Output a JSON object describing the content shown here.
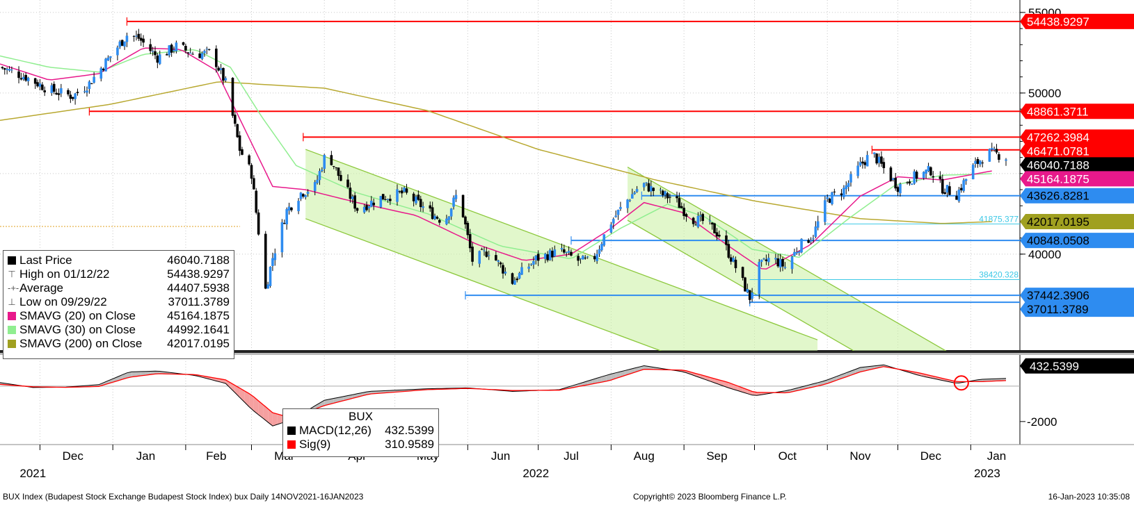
{
  "footer": {
    "left": "BUX Index (Budapest Stock Exchange Budapest Stock Index) bux  Daily 14NOV2021-16JAN2023",
    "center": "Copyright© 2023 Bloomberg Finance L.P.",
    "right": "16-Jan-2023 10:35:08"
  },
  "legend": {
    "items": [
      {
        "label": "Last Price",
        "value": "46040.7188",
        "marker": "square",
        "color": "#000000"
      },
      {
        "label": "High on 01/12/22",
        "value": "54438.9297",
        "marker": "high",
        "color": "#555555"
      },
      {
        "label": "Average",
        "value": "44407.5938",
        "marker": "avg",
        "color": "#555555"
      },
      {
        "label": "Low on 09/29/22",
        "value": "37011.3789",
        "marker": "low",
        "color": "#555555"
      },
      {
        "label": "SMAVG (20)  on Close",
        "value": "45164.1875",
        "marker": "square",
        "color": "#e8198b"
      },
      {
        "label": "SMAVG (30)  on Close",
        "value": "44992.1641",
        "marker": "square",
        "color": "#90ee90"
      },
      {
        "label": "SMAVG (200)  on Close",
        "value": "42017.0195",
        "marker": "square",
        "color": "#a0a020"
      }
    ]
  },
  "macd_legend": {
    "title": "BUX",
    "items": [
      {
        "label": "MACD(12,26)",
        "value": "432.5399",
        "color": "#000000"
      },
      {
        "label": "Sig(9)",
        "value": "310.9589",
        "color": "#ff0000"
      }
    ]
  },
  "chart_data": {
    "type": "candlestick",
    "x_range": [
      "2021-11-14",
      "2023-01-16"
    ],
    "x_month_labels": [
      "Dec",
      "Jan",
      "Feb",
      "Mar",
      "Apr",
      "May",
      "Jun",
      "Jul",
      "Aug",
      "Sep",
      "Oct",
      "Nov",
      "Dec",
      "Jan"
    ],
    "x_year_labels": [
      "2021",
      "2022",
      "2023"
    ],
    "y_ticks": [
      "55000",
      "50000",
      "40000"
    ],
    "ylim": [
      34000,
      55600
    ],
    "horizontal_levels": [
      {
        "label": "54438.9297",
        "value": 54438.9297,
        "color": "#ff0000"
      },
      {
        "label": "48861.3711",
        "value": 48861.3711,
        "color": "#ff0000"
      },
      {
        "label": "47262.3984",
        "value": 47262.3984,
        "color": "#ff0000"
      },
      {
        "label": "46471.0781",
        "value": 46471.0781,
        "color": "#ff0000"
      },
      {
        "label": "43626.8281",
        "value": 43626.8281,
        "color": "#2e8cf0"
      },
      {
        "label": "40848.0508",
        "value": 40848.0508,
        "color": "#2e8cf0"
      },
      {
        "label": "37442.3906",
        "value": 37442.3906,
        "color": "#2e8cf0"
      },
      {
        "label": "37011.3789",
        "value": 37011.3789,
        "color": "#2e8cf0"
      }
    ],
    "right_tags": [
      {
        "label": "54438.9297",
        "value": 54438.9297,
        "bg": "#ff0000",
        "fg": "#ffffff"
      },
      {
        "label": "48861.3711",
        "value": 48861.3711,
        "bg": "#ff0000",
        "fg": "#ffffff"
      },
      {
        "label": "47262.3984",
        "value": 47262.3984,
        "bg": "#ff0000",
        "fg": "#ffffff"
      },
      {
        "label": "46471.0781",
        "value": 46471.0781,
        "bg": "#ff0000",
        "fg": "#ffffff"
      },
      {
        "label": "46040.7188",
        "value": 46040.7188,
        "bg": "#000000",
        "fg": "#ffffff"
      },
      {
        "label": "45164.1875",
        "value": 45164.1875,
        "bg": "#e8198b",
        "fg": "#ffffff"
      },
      {
        "label": "43626.8281",
        "value": 43626.8281,
        "bg": "#2e8cf0",
        "fg": "#000000"
      },
      {
        "label": "42017.0195",
        "value": 42017.0195,
        "bg": "#a0a020",
        "fg": "#000000"
      },
      {
        "label": "40848.0508",
        "value": 40848.0508,
        "bg": "#2e8cf0",
        "fg": "#000000"
      },
      {
        "label": "37442.3906",
        "value": 37442.3906,
        "bg": "#2e8cf0",
        "fg": "#000000"
      },
      {
        "label": "37011.3789",
        "value": 37011.3789,
        "bg": "#2e8cf0",
        "fg": "#000000"
      }
    ],
    "fib_labels": [
      {
        "label": "41875.377",
        "value": 41875.377
      },
      {
        "label": "38420.328",
        "value": 38420.328
      }
    ],
    "sma20_anchor": [
      [
        "2021-11-14",
        51800
      ],
      [
        "2021-12-05",
        50800
      ],
      [
        "2021-12-26",
        51200
      ],
      [
        "2022-01-14",
        52800
      ],
      [
        "2022-01-30",
        52700
      ],
      [
        "2022-02-14",
        51400
      ],
      [
        "2022-02-28",
        47200
      ],
      [
        "2022-03-10",
        44200
      ],
      [
        "2022-03-24",
        44000
      ],
      [
        "2022-04-15",
        43200
      ],
      [
        "2022-05-10",
        42400
      ],
      [
        "2022-06-05",
        40600
      ],
      [
        "2022-06-25",
        39600
      ],
      [
        "2022-07-15",
        40000
      ],
      [
        "2022-07-31",
        41500
      ],
      [
        "2022-08-15",
        43200
      ],
      [
        "2022-08-31",
        42600
      ],
      [
        "2022-09-20",
        40500
      ],
      [
        "2022-10-05",
        39000
      ],
      [
        "2022-10-25",
        40600
      ],
      [
        "2022-11-15",
        43600
      ],
      [
        "2022-12-01",
        44800
      ],
      [
        "2022-12-20",
        44600
      ],
      [
        "2023-01-10",
        45164
      ]
    ],
    "sma30_anchor": [
      [
        "2021-11-14",
        52300
      ],
      [
        "2021-12-05",
        51600
      ],
      [
        "2021-12-26",
        51300
      ],
      [
        "2022-01-14",
        52400
      ],
      [
        "2022-02-05",
        52700
      ],
      [
        "2022-02-20",
        51600
      ],
      [
        "2022-03-05",
        48600
      ],
      [
        "2022-03-20",
        45500
      ],
      [
        "2022-04-15",
        43800
      ],
      [
        "2022-05-15",
        42500
      ],
      [
        "2022-06-15",
        40500
      ],
      [
        "2022-07-15",
        39700
      ],
      [
        "2022-08-05",
        41600
      ],
      [
        "2022-08-25",
        43100
      ],
      [
        "2022-09-10",
        42300
      ],
      [
        "2022-09-30",
        40300
      ],
      [
        "2022-10-20",
        39800
      ],
      [
        "2022-11-10",
        42200
      ],
      [
        "2022-11-30",
        44300
      ],
      [
        "2022-12-20",
        44900
      ],
      [
        "2023-01-10",
        44992
      ]
    ],
    "sma200_anchor": [
      [
        "2021-11-14",
        48300
      ],
      [
        "2021-12-31",
        49300
      ],
      [
        "2022-02-15",
        50700
      ],
      [
        "2022-04-01",
        50300
      ],
      [
        "2022-05-15",
        48900
      ],
      [
        "2022-07-01",
        46500
      ],
      [
        "2022-08-20",
        44600
      ],
      [
        "2022-10-01",
        43300
      ],
      [
        "2022-11-15",
        42200
      ],
      [
        "2022-12-20",
        41900
      ],
      [
        "2023-01-10",
        42017
      ]
    ],
    "price_anchor": [
      [
        "2021-11-14",
        51600
      ],
      [
        "2021-11-25",
        51000
      ],
      [
        "2021-12-05",
        50200
      ],
      [
        "2021-12-15",
        49800
      ],
      [
        "2021-12-22",
        50600
      ],
      [
        "2021-12-31",
        52300
      ],
      [
        "2022-01-07",
        53600
      ],
      [
        "2022-01-12",
        53400
      ],
      [
        "2022-01-20",
        52200
      ],
      [
        "2022-01-28",
        52900
      ],
      [
        "2022-02-05",
        52400
      ],
      [
        "2022-02-12",
        52500
      ],
      [
        "2022-02-18",
        50600
      ],
      [
        "2022-02-24",
        46500
      ],
      [
        "2022-03-01",
        45000
      ],
      [
        "2022-03-07",
        37800
      ],
      [
        "2022-03-10",
        39800
      ],
      [
        "2022-03-16",
        42700
      ],
      [
        "2022-03-22",
        43800
      ],
      [
        "2022-03-28",
        44200
      ],
      [
        "2022-04-02",
        46400
      ],
      [
        "2022-04-08",
        44600
      ],
      [
        "2022-04-15",
        42800
      ],
      [
        "2022-04-25",
        43500
      ],
      [
        "2022-05-05",
        43800
      ],
      [
        "2022-05-15",
        42700
      ],
      [
        "2022-05-22",
        42000
      ],
      [
        "2022-05-28",
        43900
      ],
      [
        "2022-06-03",
        39600
      ],
      [
        "2022-06-10",
        40200
      ],
      [
        "2022-06-20",
        38300
      ],
      [
        "2022-06-30",
        39700
      ],
      [
        "2022-07-10",
        40200
      ],
      [
        "2022-07-18",
        39600
      ],
      [
        "2022-07-24",
        39500
      ],
      [
        "2022-07-31",
        41800
      ],
      [
        "2022-08-07",
        43200
      ],
      [
        "2022-08-14",
        44400
      ],
      [
        "2022-08-21",
        43800
      ],
      [
        "2022-08-28",
        43400
      ],
      [
        "2022-09-04",
        42200
      ],
      [
        "2022-09-10",
        42000
      ],
      [
        "2022-09-16",
        41200
      ],
      [
        "2022-09-22",
        39500
      ],
      [
        "2022-09-29",
        37300
      ],
      [
        "2022-10-03",
        39200
      ],
      [
        "2022-10-08",
        39800
      ],
      [
        "2022-10-14",
        39200
      ],
      [
        "2022-10-20",
        40500
      ],
      [
        "2022-10-26",
        41200
      ],
      [
        "2022-11-01",
        43400
      ],
      [
        "2022-11-08",
        44000
      ],
      [
        "2022-11-15",
        45500
      ],
      [
        "2022-11-20",
        46300
      ],
      [
        "2022-11-25",
        45300
      ],
      [
        "2022-12-01",
        44200
      ],
      [
        "2022-12-08",
        44800
      ],
      [
        "2022-12-15",
        45200
      ],
      [
        "2022-12-20",
        44100
      ],
      [
        "2022-12-26",
        43700
      ],
      [
        "2023-01-02",
        45400
      ],
      [
        "2023-01-08",
        46300
      ],
      [
        "2023-01-12",
        46200
      ],
      [
        "2023-01-16",
        46040
      ]
    ],
    "channels": [
      {
        "start": [
          "2022-03-24",
          46500
        ],
        "end": [
          "2022-07-31",
          39500
        ],
        "width": 4300
      },
      {
        "start": [
          "2022-08-08",
          45400
        ],
        "end": [
          "2022-11-30",
          35800
        ],
        "width": 3300
      }
    ],
    "macd_panel": {
      "y_ticks": [
        "-2000"
      ],
      "ylim": [
        -3300,
        1600
      ],
      "last_value_label": "432.5399",
      "macd_anchor": [
        [
          "2021-11-14",
          200
        ],
        [
          "2021-11-28",
          -80
        ],
        [
          "2021-12-12",
          -60
        ],
        [
          "2021-12-26",
          80
        ],
        [
          "2022-01-08",
          800
        ],
        [
          "2022-01-20",
          850
        ],
        [
          "2022-02-05",
          600
        ],
        [
          "2022-02-18",
          150
        ],
        [
          "2022-03-01",
          -1300
        ],
        [
          "2022-03-10",
          -2250
        ],
        [
          "2022-03-18",
          -1900
        ],
        [
          "2022-04-01",
          -800
        ],
        [
          "2022-04-20",
          -300
        ],
        [
          "2022-05-15",
          -150
        ],
        [
          "2022-06-01",
          -100
        ],
        [
          "2022-06-20",
          -300
        ],
        [
          "2022-07-10",
          -200
        ],
        [
          "2022-07-31",
          650
        ],
        [
          "2022-08-15",
          1150
        ],
        [
          "2022-09-01",
          800
        ],
        [
          "2022-09-20",
          -100
        ],
        [
          "2022-10-01",
          -550
        ],
        [
          "2022-10-15",
          -250
        ],
        [
          "2022-10-31",
          300
        ],
        [
          "2022-11-15",
          1050
        ],
        [
          "2022-11-25",
          1200
        ],
        [
          "2022-12-10",
          600
        ],
        [
          "2022-12-26",
          150
        ],
        [
          "2023-01-05",
          380
        ],
        [
          "2023-01-16",
          432
        ]
      ],
      "signal_anchor": [
        [
          "2021-11-14",
          100
        ],
        [
          "2021-11-28",
          -40
        ],
        [
          "2021-12-12",
          -70
        ],
        [
          "2021-12-26",
          -20
        ],
        [
          "2022-01-08",
          500
        ],
        [
          "2022-01-20",
          700
        ],
        [
          "2022-02-05",
          650
        ],
        [
          "2022-02-18",
          350
        ],
        [
          "2022-03-01",
          -500
        ],
        [
          "2022-03-10",
          -1500
        ],
        [
          "2022-03-18",
          -1800
        ],
        [
          "2022-04-01",
          -1100
        ],
        [
          "2022-04-20",
          -450
        ],
        [
          "2022-05-15",
          -200
        ],
        [
          "2022-06-01",
          -130
        ],
        [
          "2022-06-20",
          -250
        ],
        [
          "2022-07-10",
          -230
        ],
        [
          "2022-07-31",
          300
        ],
        [
          "2022-08-15",
          950
        ],
        [
          "2022-09-01",
          900
        ],
        [
          "2022-09-20",
          200
        ],
        [
          "2022-10-01",
          -350
        ],
        [
          "2022-10-15",
          -380
        ],
        [
          "2022-10-31",
          100
        ],
        [
          "2022-11-15",
          800
        ],
        [
          "2022-11-25",
          1100
        ],
        [
          "2022-12-10",
          750
        ],
        [
          "2022-12-26",
          250
        ],
        [
          "2023-01-05",
          250
        ],
        [
          "2023-01-16",
          311
        ]
      ]
    }
  }
}
